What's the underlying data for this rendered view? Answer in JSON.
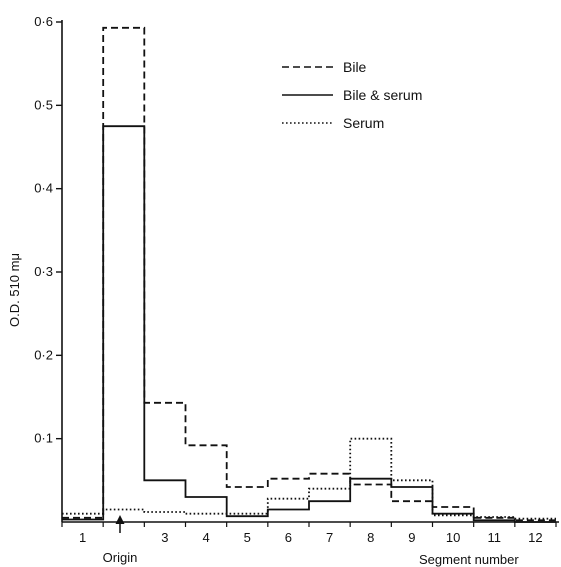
{
  "chart_data": {
    "type": "step-histogram",
    "xlabel": "Segment number",
    "ylabel": "O.D. 510 mμ",
    "ylim": [
      0,
      0.6
    ],
    "yticks": [
      "0·1",
      "0·2",
      "0·3",
      "0·4",
      "0·5",
      "0·6"
    ],
    "ytick_values": [
      0.1,
      0.2,
      0.3,
      0.4,
      0.5,
      0.6
    ],
    "categories": [
      "1",
      "Origin",
      "3",
      "4",
      "5",
      "6",
      "7",
      "8",
      "9",
      "10",
      "11",
      "12"
    ],
    "annotation": {
      "text": "Origin",
      "segment": 2
    },
    "legend_position": "top-right",
    "series": [
      {
        "name": "Bile",
        "style": "dashed",
        "values": [
          0.005,
          0.593,
          0.143,
          0.092,
          0.042,
          0.052,
          0.058,
          0.045,
          0.025,
          0.018,
          0.005,
          0.002
        ]
      },
      {
        "name": "Bile & serum",
        "style": "solid",
        "values": [
          0.003,
          0.475,
          0.05,
          0.03,
          0.007,
          0.015,
          0.025,
          0.052,
          0.042,
          0.01,
          0.002,
          0.0
        ]
      },
      {
        "name": "Serum",
        "style": "dotted",
        "values": [
          0.01,
          0.015,
          0.012,
          0.01,
          0.01,
          0.028,
          0.04,
          0.1,
          0.05,
          0.008,
          0.006,
          0.004
        ]
      }
    ]
  }
}
